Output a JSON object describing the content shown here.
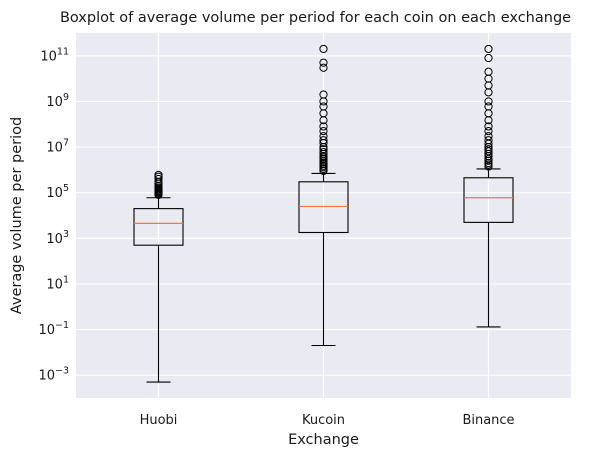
{
  "chart_data": {
    "type": "boxplot",
    "title": "Boxplot of average volume per period for each coin on each exchange",
    "xlabel": "Exchange",
    "ylabel": "Average volume per period",
    "yscale": "log",
    "ylim": [
      0.0001,
      1000000000000
    ],
    "yticks": [
      {
        "base": "10",
        "exp": "11",
        "value": 100000000000
      },
      {
        "base": "10",
        "exp": "9",
        "value": 1000000000
      },
      {
        "base": "10",
        "exp": "7",
        "value": 10000000
      },
      {
        "base": "10",
        "exp": "5",
        "value": 100000
      },
      {
        "base": "10",
        "exp": "3",
        "value": 1000
      },
      {
        "base": "10",
        "exp": "1",
        "value": 10
      },
      {
        "base": "10",
        "exp": "−1",
        "value": 0.1
      },
      {
        "base": "10",
        "exp": "−3",
        "value": 0.001
      }
    ],
    "grid": true,
    "categories": [
      "Huobi",
      "Kucoin",
      "Binance"
    ],
    "boxes": [
      {
        "name": "Huobi",
        "whisker_low": 0.0005,
        "q1": 500,
        "median": 4500,
        "q3": 20000,
        "whisker_high": 60000,
        "outliers": [
          80000,
          90000,
          100000,
          110000,
          120000,
          135000,
          150000,
          170000,
          200000,
          250000,
          300000,
          400000,
          500000,
          600000
        ]
      },
      {
        "name": "Kucoin",
        "whisker_low": 0.02,
        "q1": 1800,
        "median": 25000,
        "q3": 300000,
        "whisker_high": 700000,
        "outliers": [
          900000,
          1100000,
          1300000,
          1500000,
          1800000,
          2100000,
          2500000,
          3000000,
          3500000,
          4000000,
          5000000,
          6000000,
          8000000,
          10000000,
          15000000,
          20000000,
          30000000,
          50000000,
          80000000,
          150000000,
          300000000,
          600000000,
          1000000000,
          2000000000,
          30000000000,
          50000000000,
          200000000000
        ]
      },
      {
        "name": "Binance",
        "whisker_low": 0.13,
        "q1": 5000,
        "median": 60000,
        "q3": 450000,
        "whisker_high": 1100000,
        "outliers": [
          1400000,
          1700000,
          2000000,
          2500000,
          3000000,
          4000000,
          5000000,
          6500000,
          8000000,
          10000000,
          14000000,
          20000000,
          30000000,
          50000000,
          80000000,
          150000000,
          300000000,
          600000000,
          1000000000,
          2500000000,
          5000000000,
          10000000000,
          20000000000,
          80000000000,
          200000000000
        ]
      }
    ],
    "colors": {
      "plot_background": "#eaeaf2",
      "grid": "#ffffff",
      "box_edge": "#000000",
      "median": "#f07a3e",
      "outlier_edge": "#000000"
    }
  }
}
